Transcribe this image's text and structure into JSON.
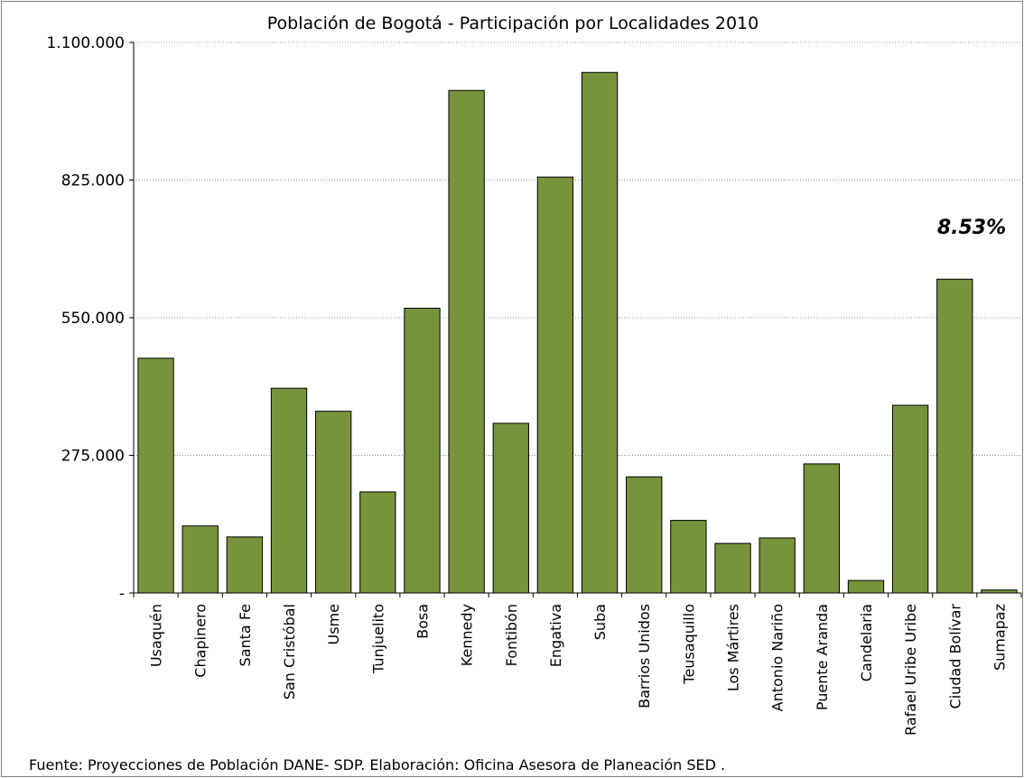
{
  "chart_data": {
    "type": "bar",
    "title": "Población de Bogotá - Participación por Localidades 2010",
    "categories": [
      "Usaquén",
      "Chapinero",
      "Santa Fe",
      "San Cristóbal",
      "Usme",
      "Tunjuelito",
      "Bosa",
      "Kennedy",
      "Fontibón",
      "Engativa",
      "Suba",
      "Barrios Unidos",
      "Teusaquillo",
      "Los Mártires",
      "Antonio Nariño",
      "Puente Aranda",
      "Candelaria",
      "Rafael Uribe Uribe",
      "Ciudad Bolívar",
      "Sumapaz"
    ],
    "values": [
      469000,
      134000,
      112000,
      409000,
      363000,
      202000,
      569000,
      1004000,
      339000,
      831000,
      1040000,
      232000,
      145000,
      99000,
      110000,
      258000,
      25000,
      375000,
      627000,
      6000
    ],
    "ylim": [
      0,
      1100000
    ],
    "yticks": [
      0,
      275000,
      550000,
      825000,
      1100000
    ],
    "ytick_labels": [
      "-",
      "275.000",
      "550.000",
      "825.000",
      "1.100.000"
    ],
    "xlabel": "",
    "ylabel": "",
    "grid": true,
    "bar_color": "#77933c",
    "bar_edge_color": "#000000",
    "annotation": "8.53%",
    "source": "Fuente: Proyecciones de Población DANE- SDP. Elaboración: Oficina Asesora de Planeación SED ."
  }
}
